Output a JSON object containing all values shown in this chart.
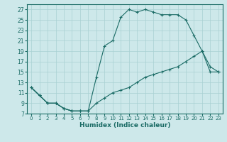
{
  "xlabel": "Humidex (Indice chaleur)",
  "bg_color": "#cde8ea",
  "grid_color": "#a8d0d3",
  "line_color": "#1a6b65",
  "xlim": [
    -0.5,
    23.5
  ],
  "ylim": [
    7,
    28
  ],
  "xticks": [
    0,
    1,
    2,
    3,
    4,
    5,
    6,
    7,
    8,
    9,
    10,
    11,
    12,
    13,
    14,
    15,
    16,
    17,
    18,
    19,
    20,
    21,
    22,
    23
  ],
  "yticks": [
    7,
    9,
    11,
    13,
    15,
    17,
    19,
    21,
    23,
    25,
    27
  ],
  "lines": [
    {
      "x": [
        0,
        1,
        2,
        3,
        4,
        5,
        6,
        7
      ],
      "y": [
        12,
        10.5,
        9,
        9,
        8,
        7.5,
        7.5,
        7.5
      ]
    },
    {
      "x": [
        0,
        1,
        2,
        3,
        4,
        5,
        6,
        7,
        8,
        9,
        10,
        11,
        12,
        13,
        14,
        15,
        16,
        17,
        18,
        19,
        20,
        21,
        22,
        23
      ],
      "y": [
        12,
        10.5,
        9,
        9,
        8,
        7.5,
        7.5,
        7.5,
        9,
        10,
        11,
        11.5,
        12,
        13,
        14,
        14.5,
        15,
        15.5,
        16,
        17,
        18,
        19,
        15,
        15
      ]
    },
    {
      "x": [
        0,
        1,
        2,
        3,
        4,
        5,
        6,
        7,
        8,
        9,
        10,
        11,
        12,
        13,
        14,
        15,
        16,
        17,
        18,
        19,
        20,
        21,
        22,
        23
      ],
      "y": [
        12,
        10.5,
        9,
        9,
        8,
        7.5,
        7.5,
        7.5,
        14,
        20,
        21,
        25.5,
        27,
        26.5,
        27,
        26.5,
        26,
        26,
        26,
        25,
        22,
        19,
        16,
        15
      ]
    }
  ]
}
